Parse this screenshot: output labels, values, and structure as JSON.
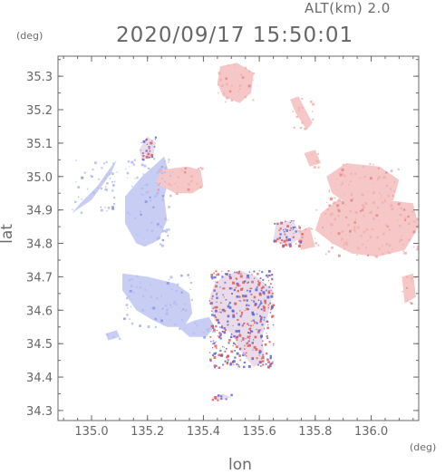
{
  "header": {
    "altitude_label": "ALT(km) 2.0",
    "timestamp": "2020/09/17 15:50:01"
  },
  "axes": {
    "y_unit": "(deg)",
    "x_unit": "(deg)",
    "y_label": "lat",
    "x_label": "lon",
    "x_range": [
      134.88,
      136.17
    ],
    "y_range": [
      34.27,
      35.36
    ],
    "x_ticks": [
      {
        "value": 135.0,
        "label": "135.0"
      },
      {
        "value": 135.2,
        "label": "135.2"
      },
      {
        "value": 135.4,
        "label": "135.4"
      },
      {
        "value": 135.6,
        "label": "135.6"
      },
      {
        "value": 135.8,
        "label": "135.8"
      },
      {
        "value": 136.0,
        "label": "136.0"
      }
    ],
    "y_ticks": [
      {
        "value": 35.3,
        "label": "35.3"
      },
      {
        "value": 35.2,
        "label": "35.2"
      },
      {
        "value": 35.1,
        "label": "35.1"
      },
      {
        "value": 35.0,
        "label": "35.0"
      },
      {
        "value": 34.9,
        "label": "34.9"
      },
      {
        "value": 34.8,
        "label": "34.8"
      },
      {
        "value": 34.7,
        "label": "34.7"
      },
      {
        "value": 34.6,
        "label": "34.6"
      },
      {
        "value": 34.5,
        "label": "34.5"
      },
      {
        "value": 34.4,
        "label": "34.4"
      },
      {
        "value": 34.3,
        "label": "34.3"
      }
    ]
  },
  "colors": {
    "approaching_blue": "#c8cdf4",
    "receding_red": "#f6c7c7",
    "frame": "#666666"
  },
  "echo_regions": [
    {
      "kind": "blue",
      "points": [
        [
          134.93,
          34.89
        ],
        [
          135.0,
          34.93
        ],
        [
          135.07,
          35.01
        ],
        [
          135.09,
          35.05
        ],
        [
          135.07,
          35.03
        ],
        [
          135.02,
          34.97
        ],
        [
          134.96,
          34.92
        ]
      ]
    },
    {
      "kind": "blue",
      "points": [
        [
          135.12,
          34.94
        ],
        [
          135.18,
          35.0
        ],
        [
          135.22,
          35.03
        ],
        [
          135.26,
          35.06
        ],
        [
          135.28,
          35.0
        ],
        [
          135.26,
          34.94
        ],
        [
          135.27,
          34.87
        ],
        [
          135.24,
          34.81
        ],
        [
          135.19,
          34.79
        ],
        [
          135.16,
          34.8
        ],
        [
          135.12,
          34.86
        ]
      ]
    },
    {
      "kind": "blue",
      "points": [
        [
          135.11,
          34.71
        ],
        [
          135.2,
          34.7
        ],
        [
          135.3,
          34.68
        ],
        [
          135.35,
          34.65
        ],
        [
          135.36,
          34.59
        ],
        [
          135.33,
          34.55
        ],
        [
          135.27,
          34.55
        ],
        [
          135.22,
          34.57
        ],
        [
          135.16,
          34.6
        ],
        [
          135.11,
          34.66
        ]
      ]
    },
    {
      "kind": "blue",
      "points": [
        [
          135.31,
          34.55
        ],
        [
          135.37,
          34.57
        ],
        [
          135.42,
          34.58
        ],
        [
          135.44,
          34.55
        ],
        [
          135.41,
          34.52
        ],
        [
          135.35,
          34.52
        ]
      ]
    },
    {
      "kind": "blue",
      "points": [
        [
          135.05,
          34.53
        ],
        [
          135.09,
          34.54
        ],
        [
          135.1,
          34.52
        ],
        [
          135.06,
          34.51
        ]
      ]
    },
    {
      "kind": "red",
      "points": [
        [
          135.23,
          34.98
        ],
        [
          135.25,
          35.02
        ],
        [
          135.34,
          35.03
        ],
        [
          135.39,
          35.02
        ],
        [
          135.4,
          34.97
        ],
        [
          135.36,
          34.95
        ],
        [
          135.3,
          34.95
        ]
      ]
    },
    {
      "kind": "red",
      "points": [
        [
          135.46,
          35.33
        ],
        [
          135.52,
          35.34
        ],
        [
          135.58,
          35.31
        ],
        [
          135.57,
          35.25
        ],
        [
          135.53,
          35.22
        ],
        [
          135.47,
          35.24
        ],
        [
          135.45,
          35.28
        ]
      ]
    },
    {
      "kind": "red",
      "points": [
        [
          135.71,
          35.23
        ],
        [
          135.74,
          35.24
        ],
        [
          135.79,
          35.16
        ],
        [
          135.77,
          35.14
        ],
        [
          135.73,
          35.19
        ]
      ]
    },
    {
      "kind": "red",
      "points": [
        [
          135.76,
          35.07
        ],
        [
          135.8,
          35.08
        ],
        [
          135.82,
          35.04
        ],
        [
          135.78,
          35.03
        ]
      ]
    },
    {
      "kind": "red",
      "points": [
        [
          135.84,
          35.0
        ],
        [
          135.91,
          35.04
        ],
        [
          136.03,
          35.03
        ],
        [
          136.1,
          34.99
        ],
        [
          136.08,
          34.93
        ],
        [
          136.02,
          34.9
        ],
        [
          135.93,
          34.91
        ],
        [
          135.86,
          34.95
        ]
      ]
    },
    {
      "kind": "red",
      "points": [
        [
          135.82,
          34.89
        ],
        [
          135.88,
          34.93
        ],
        [
          135.95,
          34.92
        ],
        [
          136.05,
          34.93
        ],
        [
          136.15,
          34.92
        ],
        [
          136.17,
          34.85
        ],
        [
          136.12,
          34.78
        ],
        [
          136.02,
          34.76
        ],
        [
          135.93,
          34.77
        ],
        [
          135.86,
          34.8
        ],
        [
          135.8,
          34.84
        ]
      ]
    },
    {
      "kind": "red",
      "points": [
        [
          135.73,
          34.83
        ],
        [
          135.78,
          34.85
        ],
        [
          135.8,
          34.79
        ],
        [
          135.75,
          34.78
        ]
      ]
    },
    {
      "kind": "red",
      "points": [
        [
          136.11,
          34.7
        ],
        [
          136.15,
          34.71
        ],
        [
          136.16,
          34.64
        ],
        [
          136.12,
          34.62
        ]
      ]
    },
    {
      "kind": "mixed",
      "points": [
        [
          135.47,
          34.7
        ],
        [
          135.53,
          34.72
        ],
        [
          135.59,
          34.7
        ],
        [
          135.65,
          34.66
        ],
        [
          135.63,
          34.58
        ],
        [
          135.61,
          34.52
        ],
        [
          135.62,
          34.45
        ],
        [
          135.58,
          34.43
        ],
        [
          135.54,
          34.47
        ],
        [
          135.5,
          34.53
        ],
        [
          135.44,
          34.57
        ],
        [
          135.42,
          34.63
        ],
        [
          135.44,
          34.68
        ]
      ]
    },
    {
      "kind": "mixed",
      "points": [
        [
          135.17,
          35.08
        ],
        [
          135.2,
          35.12
        ],
        [
          135.23,
          35.1
        ],
        [
          135.22,
          35.06
        ],
        [
          135.18,
          35.05
        ]
      ]
    },
    {
      "kind": "mixed",
      "points": [
        [
          135.66,
          34.86
        ],
        [
          135.72,
          34.87
        ],
        [
          135.75,
          34.82
        ],
        [
          135.7,
          34.79
        ],
        [
          135.65,
          34.81
        ]
      ]
    },
    {
      "kind": "mixed",
      "points": [
        [
          135.43,
          34.34
        ],
        [
          135.47,
          34.35
        ],
        [
          135.5,
          34.34
        ],
        [
          135.46,
          34.33
        ]
      ]
    }
  ]
}
